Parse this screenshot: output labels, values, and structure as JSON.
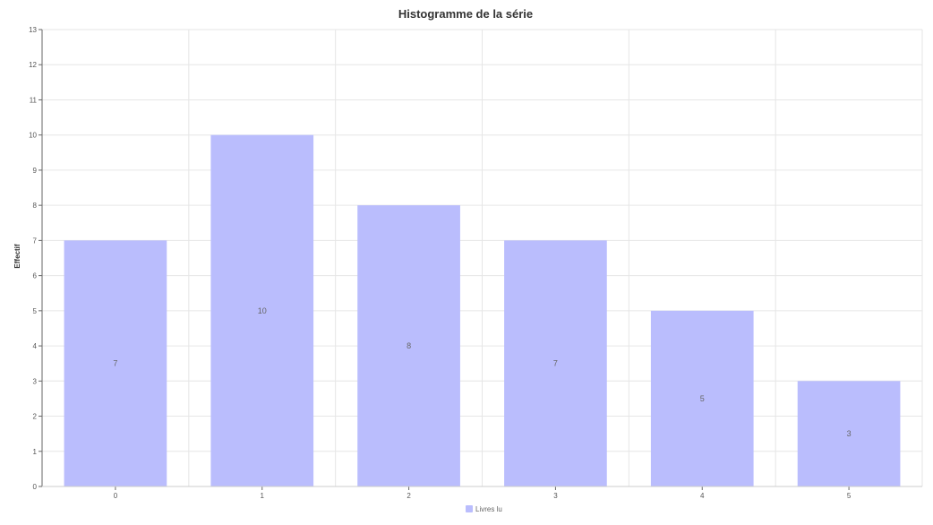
{
  "chart_data": {
    "type": "bar",
    "title": "Histogramme de la série",
    "xlabel": "",
    "ylabel": "Effectif",
    "categories": [
      "0",
      "1",
      "2",
      "3",
      "4",
      "5"
    ],
    "series": [
      {
        "name": "Livres lu",
        "values": [
          7,
          10,
          8,
          7,
          5,
          3
        ],
        "color": "#babdfd"
      }
    ],
    "data_labels": [
      "7",
      "10",
      "8",
      "7",
      "5",
      "3"
    ],
    "ylim": [
      0,
      13
    ],
    "yticks": [
      "0",
      "1",
      "2",
      "3",
      "4",
      "5",
      "6",
      "7",
      "8",
      "9",
      "10",
      "11",
      "12",
      "13"
    ],
    "grid": true,
    "legend": "bottom-center",
    "colors": {
      "bar": "#babdfd",
      "grid": "#e6e6e6",
      "axis": "#666666"
    }
  }
}
